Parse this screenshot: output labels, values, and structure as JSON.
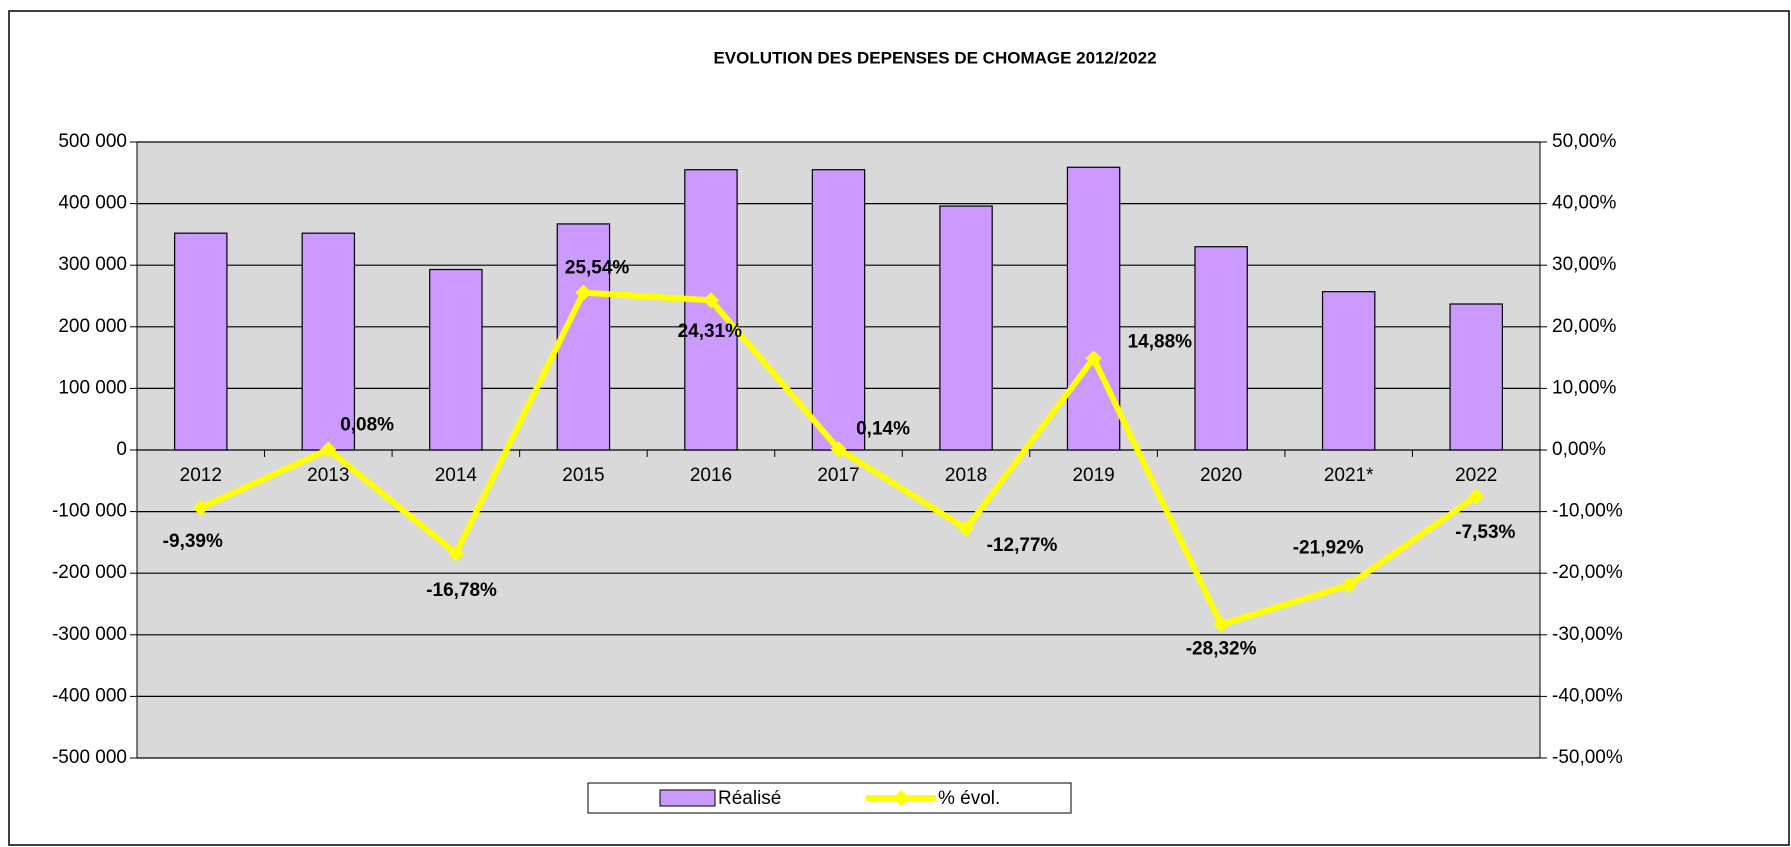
{
  "chart_data": {
    "type": "bar_line",
    "title": "EVOLUTION DES DEPENSES  DE CHOMAGE 2012/2022",
    "categories": [
      "2012",
      "2013",
      "2014",
      "2015",
      "2016",
      "2017",
      "2018",
      "2019",
      "2020",
      "2021*",
      "2022"
    ],
    "series": [
      {
        "name": "Réalisé",
        "type": "bar",
        "color": "#cc99ff",
        "values": [
          352000,
          352000,
          293000,
          367000,
          455000,
          455000,
          396000,
          459000,
          330000,
          257000,
          237000
        ]
      },
      {
        "name": "% évol.",
        "type": "line",
        "axis": "y2",
        "color": "#ffff00",
        "values": [
          -9.39,
          0.08,
          -16.78,
          25.54,
          24.31,
          0.14,
          -12.77,
          14.88,
          -28.32,
          -21.92,
          -7.53
        ],
        "value_labels": [
          "-9,39%",
          "0,08%",
          "-16,78%",
          "25,54%",
          "24,31%",
          "0,14%",
          "-12,77%",
          "14,88%",
          "-28,32%",
          "-21,92%",
          "-7,53%"
        ]
      }
    ],
    "ylim": [
      -500000,
      500000
    ],
    "yticks": [
      {
        "value": -500000,
        "label": "-500 000"
      },
      {
        "value": -400000,
        "label": "-400 000"
      },
      {
        "value": -300000,
        "label": "-300 000"
      },
      {
        "value": -200000,
        "label": "-200 000"
      },
      {
        "value": -100000,
        "label": "-100 000"
      },
      0,
      {
        "value": 100000,
        "label": "100 000"
      },
      {
        "value": 200000,
        "label": "200 000"
      },
      {
        "value": 300000,
        "label": "300 000"
      },
      {
        "value": 400000,
        "label": "400 000"
      },
      {
        "value": 500000,
        "label": "500 000"
      }
    ],
    "y2lim": [
      -50,
      50
    ],
    "y2ticks": [
      {
        "value": -50,
        "label": "-50,00%"
      },
      {
        "value": -40,
        "label": "-40,00%"
      },
      {
        "value": -30,
        "label": "-30,00%"
      },
      {
        "value": -20,
        "label": "-20,00%"
      },
      {
        "value": -10,
        "label": "-10,00%"
      },
      {
        "value": 0,
        "label": "0,00%"
      },
      {
        "value": 10,
        "label": "10,00%"
      },
      {
        "value": 20,
        "label": "20,00%"
      },
      {
        "value": 30,
        "label": "30,00%"
      },
      {
        "value": 40,
        "label": "40,00%"
      },
      {
        "value": 50,
        "label": "50,00%"
      }
    ],
    "grid": true,
    "legend": "bottom"
  }
}
